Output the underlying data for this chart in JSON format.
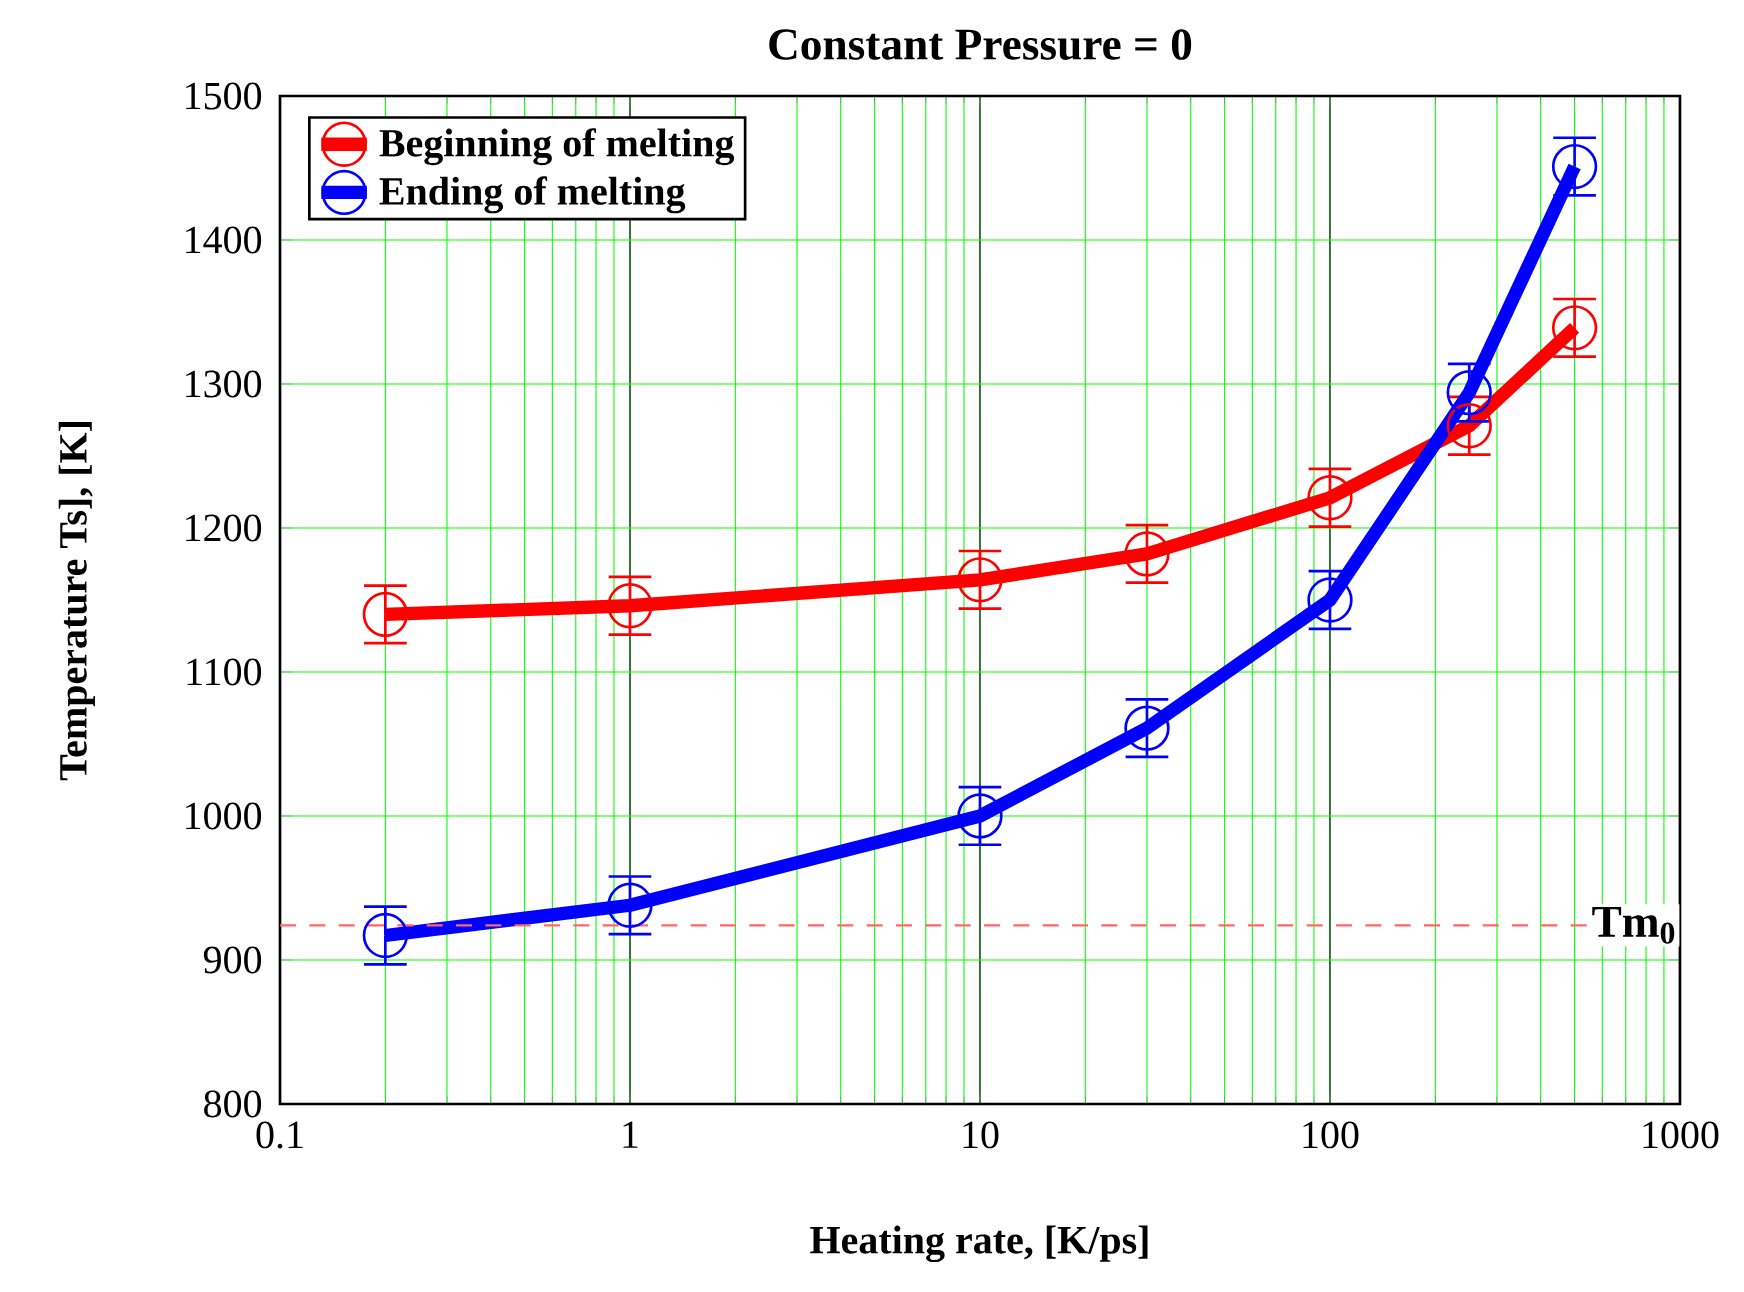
{
  "chart_data": {
    "type": "line",
    "title": "Constant Pressure = 0",
    "xlabel": "Heating rate, [K/ps]",
    "ylabel": "Temperature Ts], [K]",
    "x": [
      0.2,
      1,
      10,
      30,
      100,
      250,
      500
    ],
    "series": [
      {
        "name": "Beginning of melting",
        "color": "#ff0000",
        "values": [
          1140,
          1146,
          1164,
          1182,
          1221,
          1271,
          1339
        ],
        "errors": [
          20,
          20,
          20,
          20,
          20,
          20,
          20
        ]
      },
      {
        "name": "Ending of melting",
        "color": "#0000ff",
        "values": [
          917,
          938,
          1000,
          1061,
          1150,
          1294,
          1451
        ],
        "errors": [
          20,
          20,
          20,
          20,
          20,
          20,
          20
        ]
      }
    ],
    "log": "x",
    "xlim": [
      0.1,
      1000
    ],
    "xticks": [
      0.1,
      1,
      10,
      100,
      1000
    ],
    "ylim": [
      800,
      1500
    ],
    "yticks": [
      800,
      900,
      1000,
      1100,
      1200,
      1300,
      1400,
      1500
    ],
    "ref_lines": [
      {
        "axis": "y",
        "value": 924,
        "label": "Tm$_{0}$",
        "color": "#ff6666",
        "line_style": "dashed"
      }
    ],
    "grid": true,
    "legend": "top left",
    "marker": "circle",
    "line_style": "solid"
  }
}
